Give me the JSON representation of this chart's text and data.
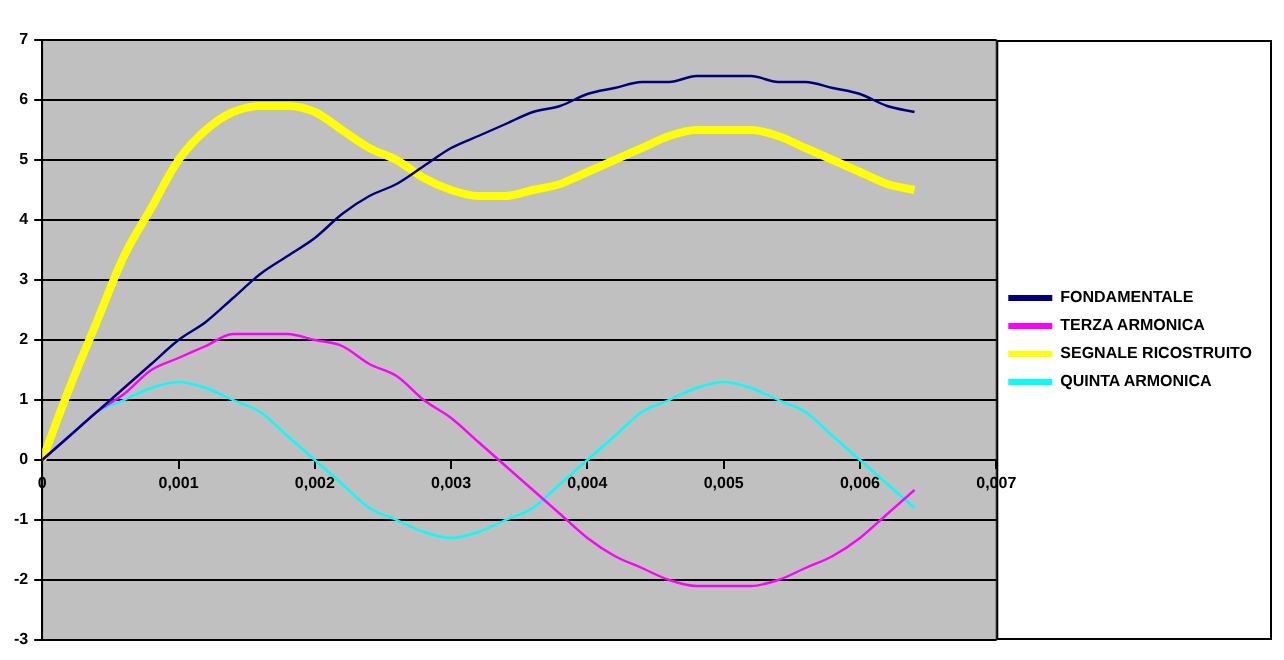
{
  "chart_data": {
    "type": "line",
    "x": [
      0,
      0.0002,
      0.0004,
      0.0006,
      0.0008,
      0.001,
      0.0012,
      0.0014,
      0.0016,
      0.0018,
      0.002,
      0.0022,
      0.0024,
      0.0026,
      0.0028,
      0.003,
      0.0032,
      0.0034,
      0.0036,
      0.0038,
      0.004,
      0.0042,
      0.0044,
      0.0046,
      0.0048,
      0.005,
      0.0052,
      0.0054,
      0.0056,
      0.0058,
      0.006,
      0.0062,
      0.0064
    ],
    "series": [
      {
        "name": "FONDAMENTALE",
        "color": "#000080",
        "values": [
          0,
          0.4,
          0.8,
          1.2,
          1.6,
          2.0,
          2.3,
          2.7,
          3.1,
          3.4,
          3.7,
          4.1,
          4.4,
          4.6,
          4.9,
          5.2,
          5.4,
          5.6,
          5.8,
          5.9,
          6.1,
          6.2,
          6.3,
          6.3,
          6.4,
          6.4,
          6.4,
          6.3,
          6.3,
          6.2,
          6.1,
          5.9,
          5.8
        ]
      },
      {
        "name": "TERZA ARMONICA",
        "color": "#ff00ff",
        "values": [
          0,
          0.4,
          0.8,
          1.1,
          1.5,
          1.7,
          1.9,
          2.1,
          2.1,
          2.1,
          2.0,
          1.9,
          1.6,
          1.4,
          1.0,
          0.7,
          0.3,
          -0.1,
          -0.5,
          -0.9,
          -1.3,
          -1.6,
          -1.8,
          -2.0,
          -2.1,
          -2.1,
          -2.1,
          -2.0,
          -1.8,
          -1.6,
          -1.3,
          -0.9,
          -0.5
        ]
      },
      {
        "name": "SEGNALE RICOSTRUITO",
        "color": "#ffff00",
        "values": [
          0,
          1.2,
          2.3,
          3.4,
          4.2,
          5.0,
          5.5,
          5.8,
          5.9,
          5.9,
          5.8,
          5.5,
          5.2,
          5.0,
          4.7,
          4.5,
          4.4,
          4.4,
          4.5,
          4.6,
          4.8,
          5.0,
          5.2,
          5.4,
          5.5,
          5.5,
          5.5,
          5.4,
          5.2,
          5.0,
          4.8,
          4.6,
          4.5
        ]
      },
      {
        "name": "QUINTA ARMONICA",
        "color": "#00ffff",
        "values": [
          0,
          0.4,
          0.8,
          1.0,
          1.2,
          1.3,
          1.2,
          1.0,
          0.8,
          0.4,
          0,
          -0.4,
          -0.8,
          -1.0,
          -1.2,
          -1.3,
          -1.2,
          -1.0,
          -0.8,
          -0.4,
          0,
          0.4,
          0.8,
          1.0,
          1.2,
          1.3,
          1.2,
          1.0,
          0.8,
          0.4,
          0,
          -0.4,
          -0.8
        ]
      }
    ],
    "xlim": [
      0,
      0.007
    ],
    "xticks": [
      0,
      {
        "value": 0.001,
        "label": "0,001"
      },
      {
        "value": 0.002,
        "label": "0,002"
      },
      {
        "value": 0.003,
        "label": "0,003"
      },
      {
        "value": 0.004,
        "label": "0,004"
      },
      {
        "value": 0.005,
        "label": "0,005"
      },
      {
        "value": 0.006,
        "label": "0,006"
      },
      {
        "value": 0.007,
        "label": "0,007"
      }
    ],
    "ylim": [
      -3,
      7
    ],
    "yticks": [
      -3,
      -2,
      -1,
      0,
      1,
      2,
      3,
      4,
      5,
      6,
      7
    ],
    "grid": "y",
    "legend": "right",
    "marker": "none",
    "line_style": "solid"
  }
}
